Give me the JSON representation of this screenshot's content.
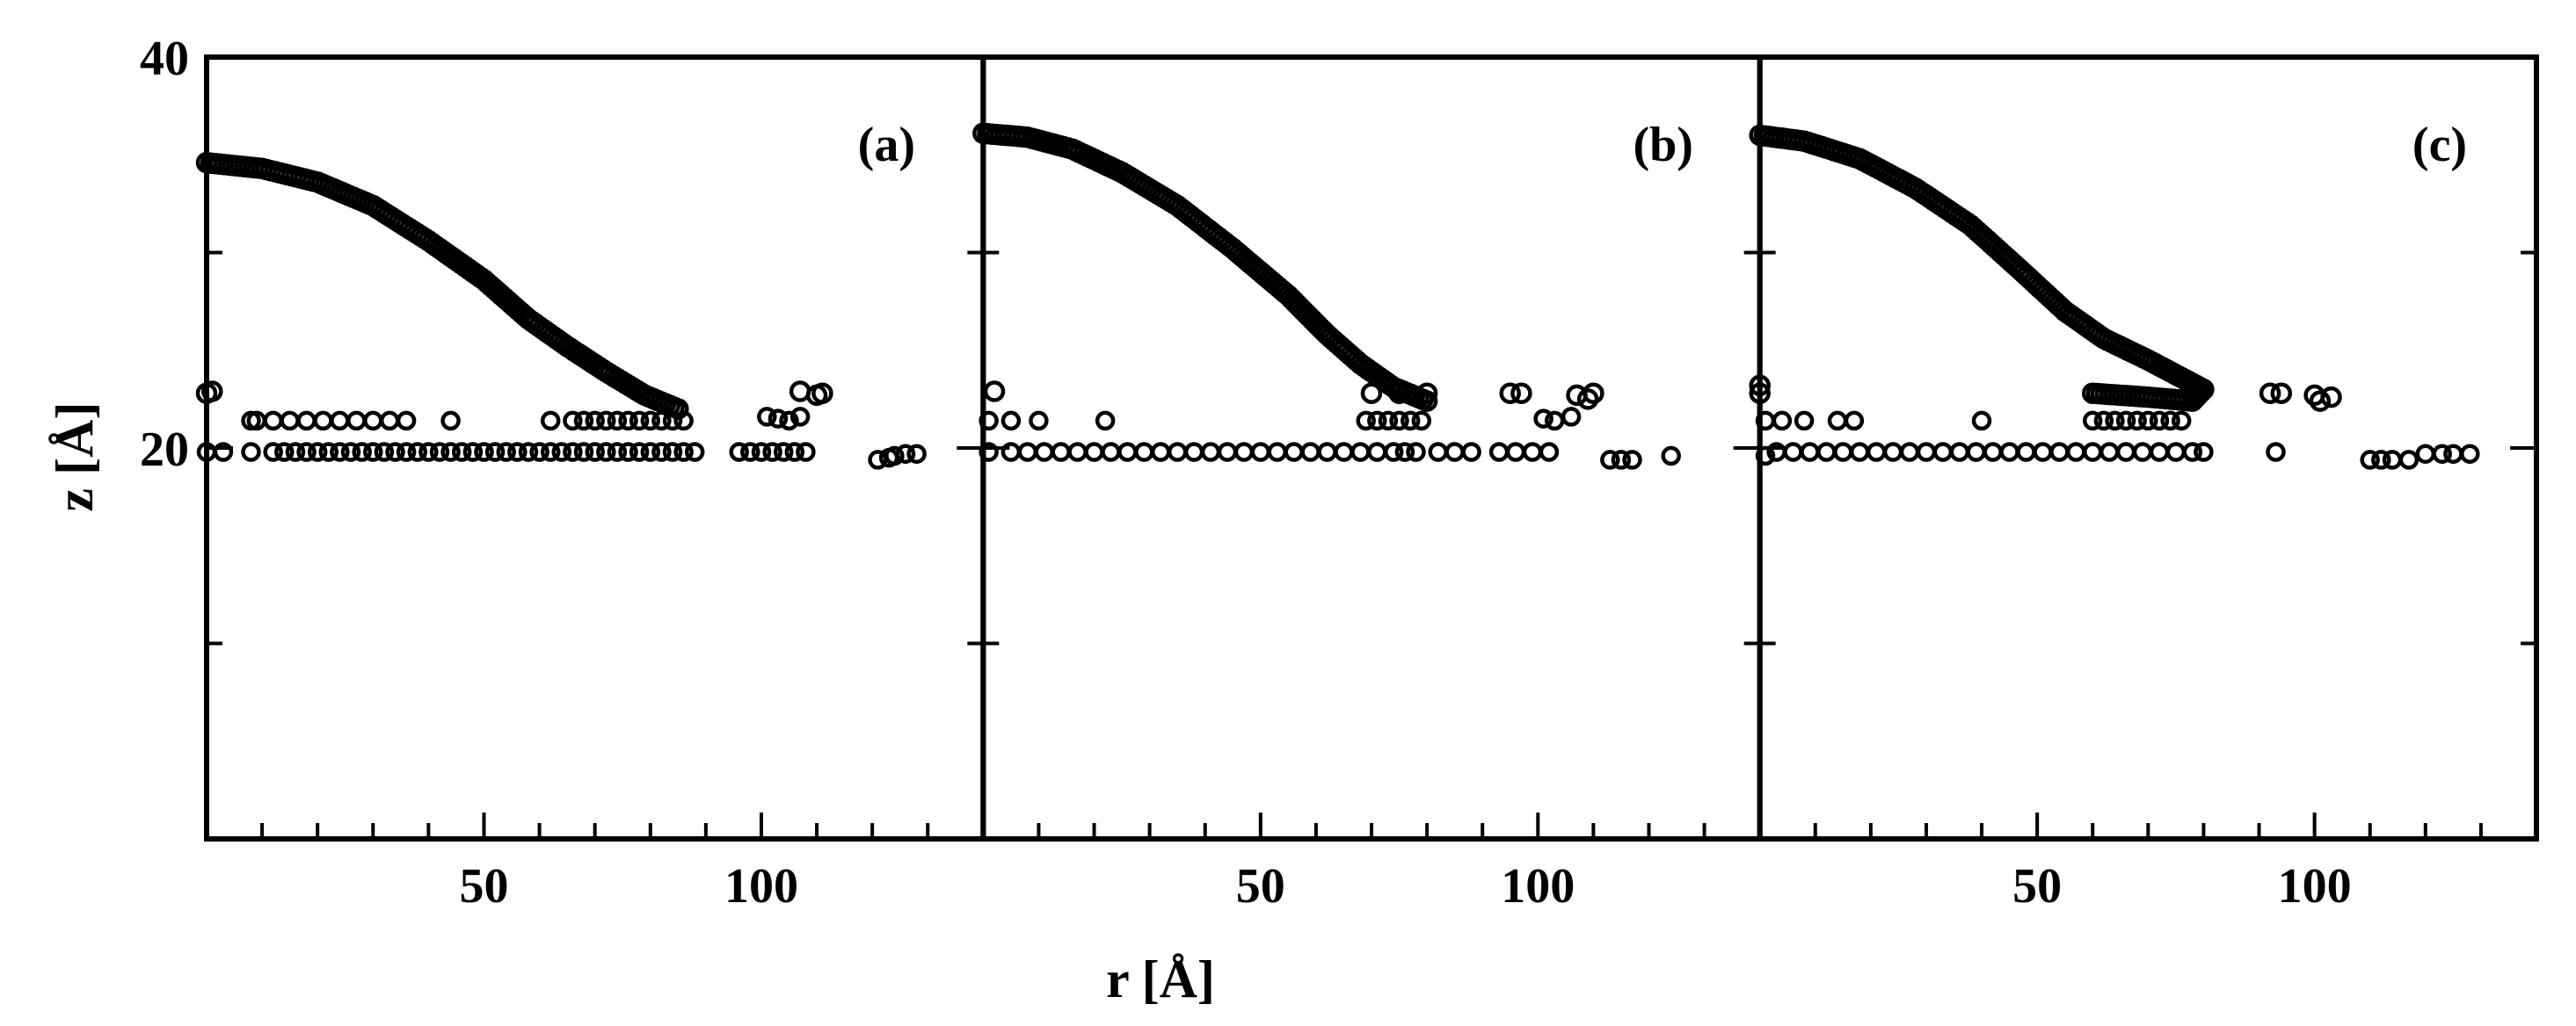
{
  "chart_data": [
    {
      "panel": "(a)",
      "type": "scatter",
      "xlim": [
        0,
        140
      ],
      "ylim": [
        0,
        40
      ],
      "xticks": [
        50,
        100
      ],
      "yticks": [
        20,
        40
      ],
      "xlabel": "r [Å]",
      "ylabel": "z [Å]",
      "surface": [
        [
          0,
          34.6
        ],
        [
          10,
          34.3
        ],
        [
          20,
          33.6
        ],
        [
          30,
          32.4
        ],
        [
          40,
          30.6
        ],
        [
          50,
          28.6
        ],
        [
          58,
          26.6
        ],
        [
          65,
          25.2
        ],
        [
          72,
          23.9
        ],
        [
          79,
          22.7
        ],
        [
          85,
          22.0
        ]
      ],
      "layer1": [
        [
          0,
          22.8
        ],
        [
          1,
          22.9
        ],
        [
          107,
          22.9
        ],
        [
          110,
          22.7
        ],
        [
          111,
          22.8
        ]
      ],
      "layer2": [
        [
          8,
          21.4
        ],
        [
          9,
          21.4
        ],
        [
          12,
          21.4
        ],
        [
          15,
          21.4
        ],
        [
          18,
          21.4
        ],
        [
          21,
          21.4
        ],
        [
          24,
          21.4
        ],
        [
          27,
          21.4
        ],
        [
          30,
          21.4
        ],
        [
          33,
          21.4
        ],
        [
          36,
          21.4
        ],
        [
          44,
          21.4
        ],
        [
          62,
          21.4
        ],
        [
          66,
          21.4
        ],
        [
          68,
          21.4
        ],
        [
          70,
          21.4
        ],
        [
          72,
          21.4
        ],
        [
          74,
          21.4
        ],
        [
          76,
          21.4
        ],
        [
          78,
          21.4
        ],
        [
          80,
          21.4
        ],
        [
          82,
          21.4
        ],
        [
          84,
          21.4
        ],
        [
          86,
          21.4
        ],
        [
          101,
          21.6
        ],
        [
          103,
          21.5
        ],
        [
          105,
          21.4
        ],
        [
          107,
          21.6
        ]
      ],
      "layer3": [
        [
          0,
          19.8
        ],
        [
          3,
          19.8
        ],
        [
          8,
          19.8
        ],
        [
          12,
          19.8
        ],
        [
          14,
          19.8
        ],
        [
          16,
          19.8
        ],
        [
          18,
          19.8
        ],
        [
          20,
          19.8
        ],
        [
          22,
          19.8
        ],
        [
          24,
          19.8
        ],
        [
          26,
          19.8
        ],
        [
          28,
          19.8
        ],
        [
          30,
          19.8
        ],
        [
          32,
          19.8
        ],
        [
          34,
          19.8
        ],
        [
          36,
          19.8
        ],
        [
          38,
          19.8
        ],
        [
          40,
          19.8
        ],
        [
          42,
          19.8
        ],
        [
          44,
          19.8
        ],
        [
          46,
          19.8
        ],
        [
          48,
          19.8
        ],
        [
          50,
          19.8
        ],
        [
          52,
          19.8
        ],
        [
          54,
          19.8
        ],
        [
          56,
          19.8
        ],
        [
          58,
          19.8
        ],
        [
          60,
          19.8
        ],
        [
          62,
          19.8
        ],
        [
          64,
          19.8
        ],
        [
          66,
          19.8
        ],
        [
          68,
          19.8
        ],
        [
          70,
          19.8
        ],
        [
          72,
          19.8
        ],
        [
          74,
          19.8
        ],
        [
          76,
          19.8
        ],
        [
          78,
          19.8
        ],
        [
          80,
          19.8
        ],
        [
          82,
          19.8
        ],
        [
          84,
          19.8
        ],
        [
          86,
          19.8
        ],
        [
          88,
          19.8
        ],
        [
          96,
          19.8
        ],
        [
          98,
          19.8
        ],
        [
          100,
          19.8
        ],
        [
          102,
          19.8
        ],
        [
          104,
          19.8
        ],
        [
          106,
          19.8
        ],
        [
          108,
          19.8
        ],
        [
          121,
          19.4
        ],
        [
          123,
          19.5
        ],
        [
          124,
          19.6
        ],
        [
          126,
          19.7
        ],
        [
          128,
          19.7
        ]
      ]
    },
    {
      "panel": "(b)",
      "type": "scatter",
      "xlim": [
        0,
        140
      ],
      "ylim": [
        0,
        40
      ],
      "xticks": [
        50,
        100
      ],
      "yticks": [
        20,
        40
      ],
      "xlabel": "r [Å]",
      "ylabel": "z [Å]",
      "surface": [
        [
          0,
          36.1
        ],
        [
          8,
          35.9
        ],
        [
          16,
          35.3
        ],
        [
          25,
          34.1
        ],
        [
          35,
          32.4
        ],
        [
          45,
          30.2
        ],
        [
          55,
          27.8
        ],
        [
          62,
          25.8
        ],
        [
          68,
          24.3
        ],
        [
          74,
          23.1
        ],
        [
          80,
          22.4
        ]
      ],
      "layer1": [
        [
          2,
          22.9
        ],
        [
          70,
          22.8
        ],
        [
          75,
          22.8
        ],
        [
          80,
          22.8
        ],
        [
          95,
          22.8
        ],
        [
          97,
          22.8
        ],
        [
          107,
          22.7
        ],
        [
          109,
          22.5
        ],
        [
          110,
          22.8
        ]
      ],
      "layer2": [
        [
          1,
          21.4
        ],
        [
          5,
          21.4
        ],
        [
          10,
          21.4
        ],
        [
          22,
          21.4
        ],
        [
          69,
          21.4
        ],
        [
          71,
          21.4
        ],
        [
          73,
          21.4
        ],
        [
          75,
          21.4
        ],
        [
          77,
          21.4
        ],
        [
          79,
          21.4
        ],
        [
          101,
          21.5
        ],
        [
          103,
          21.4
        ],
        [
          106,
          21.6
        ]
      ],
      "layer3": [
        [
          1,
          19.8
        ],
        [
          5,
          19.8
        ],
        [
          8,
          19.8
        ],
        [
          11,
          19.8
        ],
        [
          14,
          19.8
        ],
        [
          17,
          19.8
        ],
        [
          20,
          19.8
        ],
        [
          23,
          19.8
        ],
        [
          26,
          19.8
        ],
        [
          29,
          19.8
        ],
        [
          32,
          19.8
        ],
        [
          35,
          19.8
        ],
        [
          38,
          19.8
        ],
        [
          41,
          19.8
        ],
        [
          44,
          19.8
        ],
        [
          47,
          19.8
        ],
        [
          50,
          19.8
        ],
        [
          53,
          19.8
        ],
        [
          56,
          19.8
        ],
        [
          59,
          19.8
        ],
        [
          62,
          19.8
        ],
        [
          65,
          19.8
        ],
        [
          68,
          19.8
        ],
        [
          71,
          19.8
        ],
        [
          74,
          19.8
        ],
        [
          76,
          19.8
        ],
        [
          78,
          19.8
        ],
        [
          82,
          19.8
        ],
        [
          85,
          19.8
        ],
        [
          88,
          19.8
        ],
        [
          93,
          19.8
        ],
        [
          96,
          19.8
        ],
        [
          99,
          19.8
        ],
        [
          102,
          19.8
        ],
        [
          113,
          19.4
        ],
        [
          115,
          19.4
        ],
        [
          117,
          19.4
        ],
        [
          124,
          19.6
        ]
      ]
    },
    {
      "panel": "(c)",
      "type": "scatter",
      "xlim": [
        0,
        140
      ],
      "ylim": [
        0,
        40
      ],
      "xticks": [
        50,
        100
      ],
      "yticks": [
        20,
        40
      ],
      "xlabel": "r [Å]",
      "ylabel": "z [Å]",
      "surface": [
        [
          0,
          36.0
        ],
        [
          8,
          35.7
        ],
        [
          18,
          34.8
        ],
        [
          28,
          33.3
        ],
        [
          38,
          31.4
        ],
        [
          47,
          29.1
        ],
        [
          55,
          27.0
        ],
        [
          62,
          25.6
        ],
        [
          70,
          24.5
        ],
        [
          76,
          23.6
        ],
        [
          80,
          23.0
        ],
        [
          78,
          22.4
        ],
        [
          70,
          22.6
        ],
        [
          60,
          22.8
        ]
      ],
      "layer1": [
        [
          0,
          23.2
        ],
        [
          0,
          22.8
        ],
        [
          92,
          22.8
        ],
        [
          94,
          22.8
        ],
        [
          100,
          22.7
        ],
        [
          101,
          22.4
        ],
        [
          103,
          22.6
        ]
      ],
      "layer2": [
        [
          1,
          21.4
        ],
        [
          4,
          21.4
        ],
        [
          8,
          21.4
        ],
        [
          14,
          21.4
        ],
        [
          17,
          21.4
        ],
        [
          40,
          21.4
        ],
        [
          60,
          21.4
        ],
        [
          62,
          21.4
        ],
        [
          64,
          21.4
        ],
        [
          66,
          21.4
        ],
        [
          68,
          21.4
        ],
        [
          70,
          21.4
        ],
        [
          72,
          21.4
        ],
        [
          74,
          21.4
        ],
        [
          76,
          21.4
        ]
      ],
      "layer3": [
        [
          1,
          19.6
        ],
        [
          3,
          19.8
        ],
        [
          6,
          19.8
        ],
        [
          9,
          19.8
        ],
        [
          12,
          19.8
        ],
        [
          15,
          19.8
        ],
        [
          18,
          19.8
        ],
        [
          21,
          19.8
        ],
        [
          24,
          19.8
        ],
        [
          27,
          19.8
        ],
        [
          30,
          19.8
        ],
        [
          33,
          19.8
        ],
        [
          36,
          19.8
        ],
        [
          39,
          19.8
        ],
        [
          42,
          19.8
        ],
        [
          45,
          19.8
        ],
        [
          48,
          19.8
        ],
        [
          51,
          19.8
        ],
        [
          54,
          19.8
        ],
        [
          57,
          19.8
        ],
        [
          60,
          19.8
        ],
        [
          63,
          19.8
        ],
        [
          66,
          19.8
        ],
        [
          69,
          19.8
        ],
        [
          72,
          19.8
        ],
        [
          75,
          19.8
        ],
        [
          78,
          19.8
        ],
        [
          80,
          19.8
        ],
        [
          93,
          19.8
        ],
        [
          110,
          19.4
        ],
        [
          112,
          19.4
        ],
        [
          114,
          19.4
        ],
        [
          117,
          19.4
        ],
        [
          120,
          19.7
        ],
        [
          123,
          19.7
        ],
        [
          125,
          19.7
        ],
        [
          128,
          19.7
        ]
      ]
    }
  ]
}
